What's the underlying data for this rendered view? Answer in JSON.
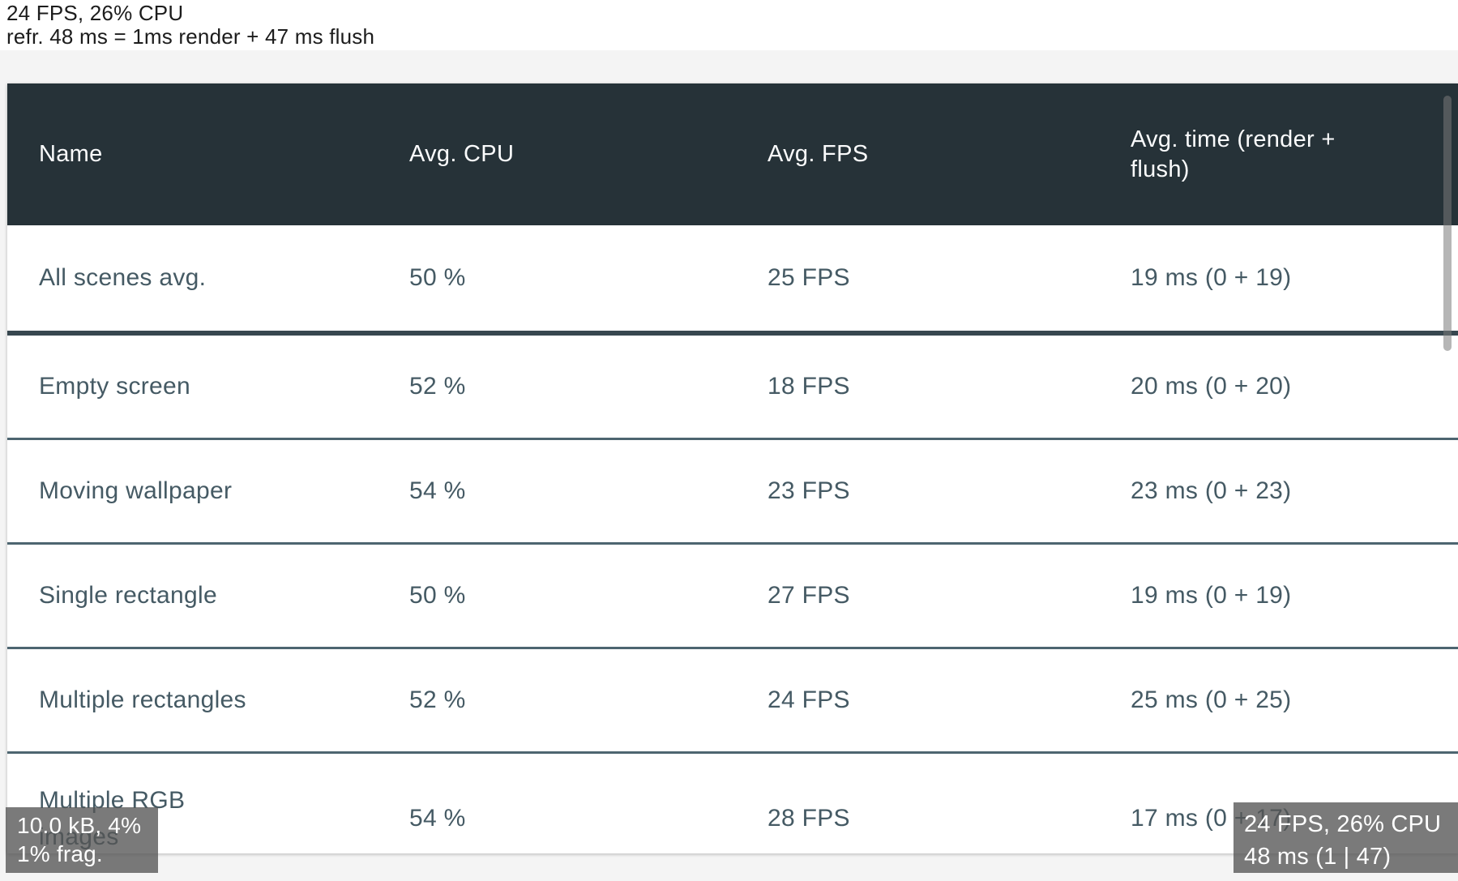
{
  "hud": {
    "top_left": {
      "line1": "24 FPS, 26% CPU",
      "line2": "refr. 48 ms = 1ms render + 47 ms flush"
    },
    "bottom_left": {
      "line1": "10.0 kB, 4%",
      "line2": "1% frag."
    },
    "bottom_right": {
      "line1": "24 FPS, 26% CPU",
      "line2": "48 ms (1 | 47)"
    }
  },
  "table": {
    "columns": [
      "Name",
      "Avg. CPU",
      "Avg. FPS",
      "Avg. time (render + flush)"
    ],
    "rows": [
      {
        "name": "All scenes avg.",
        "cpu": "50 %",
        "fps": "25 FPS",
        "time": "19 ms (0 + 19)"
      },
      {
        "name": "Empty screen",
        "cpu": "52 %",
        "fps": "18 FPS",
        "time": "20 ms (0 + 20)"
      },
      {
        "name": "Moving wallpaper",
        "cpu": "54 %",
        "fps": "23 FPS",
        "time": "23 ms (0 + 23)"
      },
      {
        "name": "Single rectangle",
        "cpu": "50 %",
        "fps": "27 FPS",
        "time": "19 ms (0 + 19)"
      },
      {
        "name": "Multiple rectangles",
        "cpu": "52 %",
        "fps": "24 FPS",
        "time": "25 ms (0 + 25)"
      },
      {
        "name": "Multiple RGB images",
        "cpu": "54 %",
        "fps": "28 FPS",
        "time": "17 ms (0 + 17)"
      }
    ]
  },
  "colors": {
    "header_bg": "#263238",
    "header_text": "#fafbfc",
    "cell_text": "#455a64",
    "summary_divider": "#37474f",
    "row_divider": "#4d6570",
    "page_bg": "#f4f4f4",
    "card_bg": "#ffffff",
    "hud_bg": "rgba(84,84,84,0.78)",
    "hud_text": "#ffffff"
  }
}
